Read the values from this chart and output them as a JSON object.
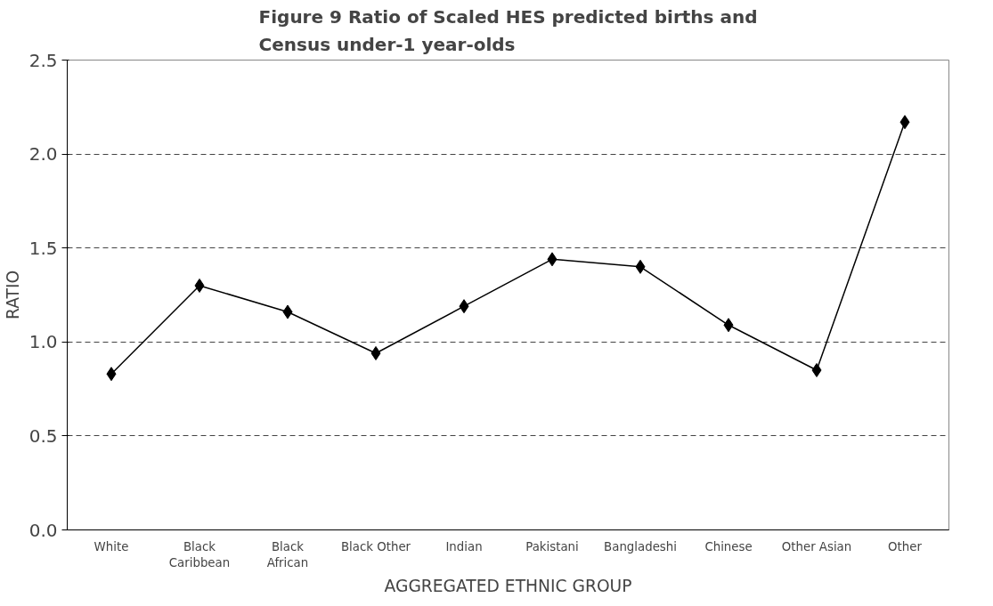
{
  "chart_data": {
    "type": "line",
    "title": "Figure 9 Ratio of Scaled HES predicted births and\nCensus under-1 year-olds",
    "xlabel": "AGGREGATED ETHNIC GROUP",
    "ylabel": "RATIO",
    "categories": [
      "White",
      "Black\nCaribbean",
      "Black\nAfrican",
      "Black Other",
      "Indian",
      "Pakistani",
      "Bangladeshi",
      "Chinese",
      "Other Asian",
      "Other"
    ],
    "series": [
      {
        "color": "#000000",
        "values": [
          0.83,
          1.3,
          1.16,
          0.94,
          1.19,
          1.44,
          1.4,
          1.09,
          0.85,
          2.17
        ]
      }
    ],
    "ylim": [
      0,
      2.5
    ],
    "yticks": [
      {
        "value": 0,
        "label": "0.0"
      },
      {
        "value": 0.5,
        "label": "0.5"
      },
      {
        "value": 1,
        "label": "1.0"
      },
      {
        "value": 1.5,
        "label": "1.5"
      },
      {
        "value": 2,
        "label": "2.0"
      },
      {
        "value": 2.5,
        "label": "2.5"
      }
    ],
    "grid": "y",
    "marker": "diamond",
    "line_style": "solid"
  }
}
